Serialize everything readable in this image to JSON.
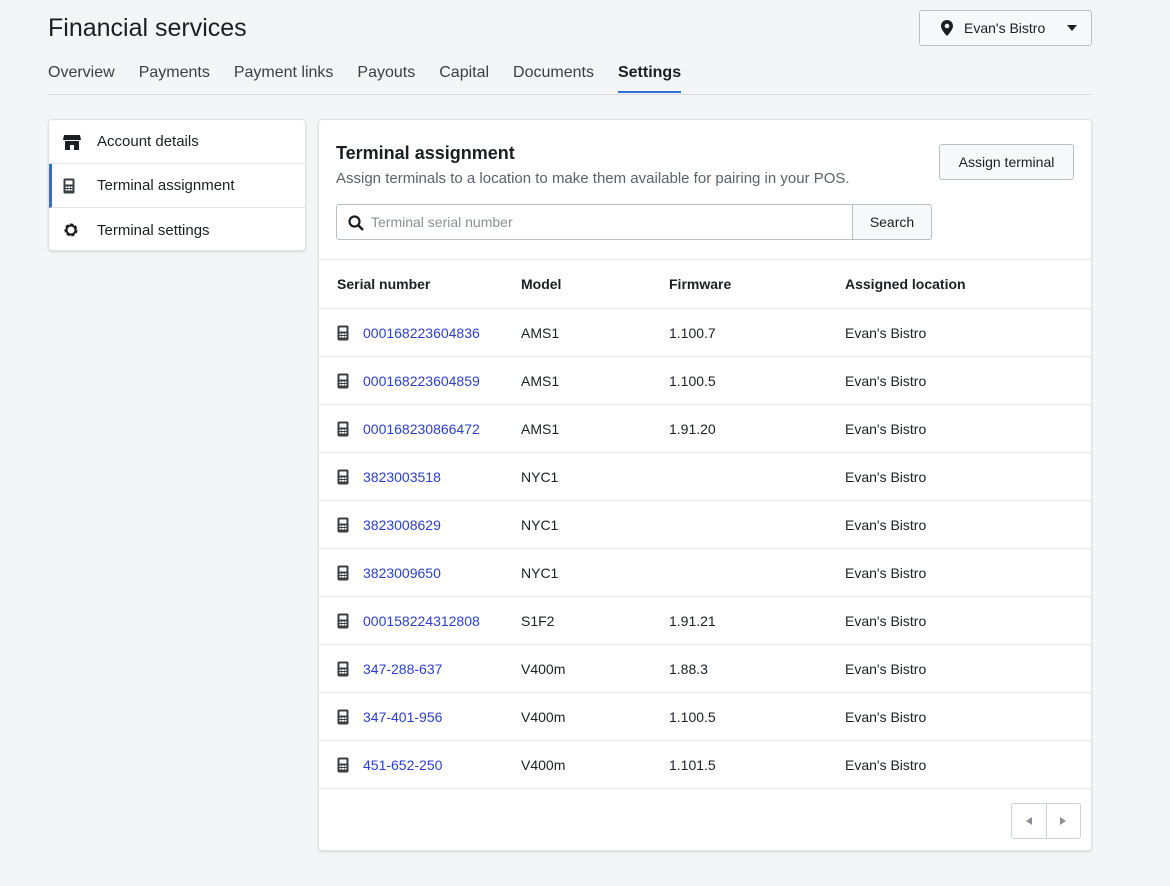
{
  "header": {
    "title": "Financial services",
    "location_button": "Evan's Bistro"
  },
  "tabs": [
    "Overview",
    "Payments",
    "Payment links",
    "Payouts",
    "Capital",
    "Documents",
    "Settings"
  ],
  "active_tab": 6,
  "sidebar": {
    "items": [
      "Account details",
      "Terminal assignment",
      "Terminal settings"
    ],
    "active": 1
  },
  "panel": {
    "title": "Terminal assignment",
    "subtitle": "Assign terminals to a location to make them available for pairing in your POS.",
    "assign_button": "Assign terminal",
    "search_placeholder": "Terminal serial number",
    "search_button": "Search"
  },
  "table": {
    "headers": [
      "Serial number",
      "Model",
      "Firmware",
      "Assigned location"
    ],
    "rows": [
      [
        "000168223604836",
        "AMS1",
        "1.100.7",
        "Evan's Bistro"
      ],
      [
        "000168223604859",
        "AMS1",
        "1.100.5",
        "Evan's Bistro"
      ],
      [
        "000168230866472",
        "AMS1",
        "1.91.20",
        "Evan's Bistro"
      ],
      [
        "3823003518",
        "NYC1",
        null,
        "Evan's Bistro"
      ],
      [
        "3823008629",
        "NYC1",
        null,
        "Evan's Bistro"
      ],
      [
        "3823009650",
        "NYC1",
        null,
        "Evan's Bistro"
      ],
      [
        "000158224312808",
        "S1F2",
        "1.91.21",
        "Evan's Bistro"
      ],
      [
        "347-288-637",
        "V400m",
        "1.88.3",
        "Evan's Bistro"
      ],
      [
        "347-401-956",
        "V400m",
        "1.100.5",
        "Evan's Bistro"
      ],
      [
        "451-652-250",
        "V400m",
        "1.101.5",
        "Evan's Bistro"
      ]
    ]
  }
}
